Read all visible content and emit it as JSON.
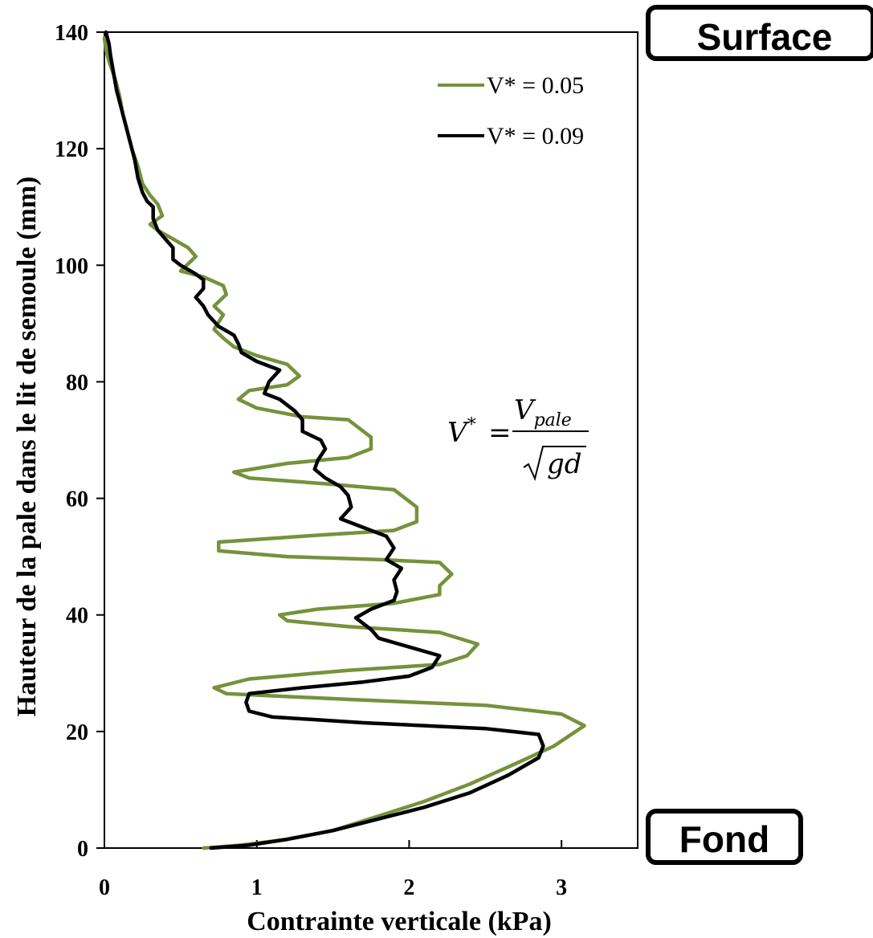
{
  "chart_data": {
    "type": "line",
    "xlabel": "Contrainte verticale (kPa)",
    "ylabel": "Hauteur de la pale dans le lit de semoule (mm)",
    "xlim": [
      0,
      3.5
    ],
    "ylim": [
      0,
      140
    ],
    "x_ticks": [
      {
        "value": 0,
        "label": "0"
      },
      {
        "value": 1,
        "label": "1"
      },
      {
        "value": 2,
        "label": "2"
      },
      {
        "value": 3,
        "label": "3"
      }
    ],
    "y_ticks": [
      {
        "value": 0,
        "label": "0"
      },
      {
        "value": 20,
        "label": "20"
      },
      {
        "value": 40,
        "label": "40"
      },
      {
        "value": 60,
        "label": "60"
      },
      {
        "value": 80,
        "label": "80"
      },
      {
        "value": 100,
        "label": "100"
      },
      {
        "value": 120,
        "label": "120"
      },
      {
        "value": 140,
        "label": "140"
      }
    ],
    "grid": false,
    "legend_position": "top-right",
    "series": [
      {
        "name": "V* = 0.05",
        "color": "#76923c",
        "points": [
          [
            0.65,
            0
          ],
          [
            0.9,
            0.5
          ],
          [
            1.2,
            1.5
          ],
          [
            1.5,
            3
          ],
          [
            1.8,
            5.5
          ],
          [
            2.1,
            8
          ],
          [
            2.4,
            11
          ],
          [
            2.7,
            14.5
          ],
          [
            2.95,
            17.5
          ],
          [
            3.15,
            21
          ],
          [
            3.0,
            23
          ],
          [
            2.5,
            24.5
          ],
          [
            1.6,
            25.5
          ],
          [
            0.8,
            26.5
          ],
          [
            0.72,
            27.5
          ],
          [
            0.95,
            29
          ],
          [
            1.6,
            30.5
          ],
          [
            2.2,
            31.5
          ],
          [
            2.38,
            33
          ],
          [
            2.45,
            35
          ],
          [
            2.2,
            37
          ],
          [
            1.6,
            38
          ],
          [
            1.2,
            39
          ],
          [
            1.15,
            40
          ],
          [
            1.4,
            41
          ],
          [
            1.9,
            42
          ],
          [
            2.2,
            43.5
          ],
          [
            2.2,
            45
          ],
          [
            2.28,
            47
          ],
          [
            2.2,
            49
          ],
          [
            1.8,
            49.5
          ],
          [
            1.2,
            50
          ],
          [
            0.75,
            51
          ],
          [
            0.75,
            52.5
          ],
          [
            1.3,
            53.5
          ],
          [
            1.9,
            54.5
          ],
          [
            2.05,
            56
          ],
          [
            2.05,
            58.5
          ],
          [
            1.9,
            61.5
          ],
          [
            1.45,
            62.5
          ],
          [
            0.95,
            63.5
          ],
          [
            0.85,
            64.5
          ],
          [
            1.2,
            66
          ],
          [
            1.6,
            67
          ],
          [
            1.75,
            68.5
          ],
          [
            1.75,
            70.5
          ],
          [
            1.6,
            73.5
          ],
          [
            1.3,
            74
          ],
          [
            1.0,
            75.5
          ],
          [
            0.88,
            77
          ],
          [
            0.95,
            78.5
          ],
          [
            1.2,
            79.5
          ],
          [
            1.28,
            81
          ],
          [
            1.2,
            83
          ],
          [
            1.0,
            84.5
          ],
          [
            0.85,
            86
          ],
          [
            0.78,
            87.5
          ],
          [
            0.72,
            89
          ],
          [
            0.78,
            91.5
          ],
          [
            0.72,
            93
          ],
          [
            0.8,
            95
          ],
          [
            0.78,
            96.5
          ],
          [
            0.65,
            98
          ],
          [
            0.5,
            99
          ],
          [
            0.6,
            101.5
          ],
          [
            0.55,
            103
          ],
          [
            0.45,
            104.5
          ],
          [
            0.35,
            106
          ],
          [
            0.3,
            107
          ],
          [
            0.38,
            108.5
          ],
          [
            0.35,
            110.5
          ],
          [
            0.3,
            112
          ],
          [
            0.25,
            114
          ],
          [
            0.22,
            117
          ],
          [
            0.18,
            120
          ],
          [
            0.15,
            123
          ],
          [
            0.12,
            126
          ],
          [
            0.1,
            129
          ],
          [
            0.07,
            132
          ],
          [
            0.03,
            135
          ],
          [
            0.01,
            137
          ],
          [
            0.0,
            139
          ]
        ]
      },
      {
        "name": "V* = 0.09",
        "color": "#000000",
        "points": [
          [
            0.7,
            0
          ],
          [
            0.95,
            0.5
          ],
          [
            1.2,
            1.5
          ],
          [
            1.5,
            3
          ],
          [
            1.8,
            5
          ],
          [
            2.1,
            7
          ],
          [
            2.4,
            9.5
          ],
          [
            2.65,
            12.5
          ],
          [
            2.85,
            15.5
          ],
          [
            2.88,
            17.5
          ],
          [
            2.85,
            19.5
          ],
          [
            2.5,
            20.5
          ],
          [
            1.7,
            21.5
          ],
          [
            1.1,
            22.5
          ],
          [
            0.95,
            23.5
          ],
          [
            0.93,
            25
          ],
          [
            0.95,
            26.5
          ],
          [
            1.3,
            27.5
          ],
          [
            1.7,
            28.5
          ],
          [
            2.0,
            29.5
          ],
          [
            2.15,
            31
          ],
          [
            2.2,
            33
          ],
          [
            2.0,
            34.5
          ],
          [
            1.8,
            36
          ],
          [
            1.75,
            37.5
          ],
          [
            1.65,
            39.5
          ],
          [
            1.75,
            41
          ],
          [
            1.9,
            42.5
          ],
          [
            1.92,
            44
          ],
          [
            1.9,
            46
          ],
          [
            1.95,
            48
          ],
          [
            1.85,
            49.5
          ],
          [
            1.9,
            51.5
          ],
          [
            1.85,
            53.5
          ],
          [
            1.7,
            55
          ],
          [
            1.55,
            56.5
          ],
          [
            1.62,
            58.5
          ],
          [
            1.6,
            60.5
          ],
          [
            1.55,
            62
          ],
          [
            1.45,
            63.5
          ],
          [
            1.38,
            65
          ],
          [
            1.4,
            66.5
          ],
          [
            1.45,
            68.5
          ],
          [
            1.42,
            70
          ],
          [
            1.3,
            71.5
          ],
          [
            1.3,
            73.5
          ],
          [
            1.25,
            75
          ],
          [
            1.15,
            77
          ],
          [
            1.05,
            78
          ],
          [
            1.08,
            80
          ],
          [
            1.15,
            82
          ],
          [
            1.0,
            83.5
          ],
          [
            0.9,
            85
          ],
          [
            0.88,
            86.5
          ],
          [
            0.85,
            88
          ],
          [
            0.75,
            89.5
          ],
          [
            0.68,
            91.5
          ],
          [
            0.65,
            93
          ],
          [
            0.6,
            94.5
          ],
          [
            0.65,
            96
          ],
          [
            0.65,
            97.5
          ],
          [
            0.6,
            98.5
          ],
          [
            0.5,
            100
          ],
          [
            0.45,
            101
          ],
          [
            0.45,
            103
          ],
          [
            0.4,
            104.5
          ],
          [
            0.35,
            106
          ],
          [
            0.32,
            108
          ],
          [
            0.32,
            110
          ],
          [
            0.28,
            111
          ],
          [
            0.25,
            112.5
          ],
          [
            0.22,
            115
          ],
          [
            0.2,
            118
          ],
          [
            0.17,
            121
          ],
          [
            0.14,
            124
          ],
          [
            0.11,
            127
          ],
          [
            0.08,
            130
          ],
          [
            0.06,
            133
          ],
          [
            0.04,
            136
          ],
          [
            0.03,
            138
          ],
          [
            0.01,
            140
          ]
        ]
      }
    ]
  },
  "formula": {
    "lhs": "V",
    "sup": "*",
    "eq": "=",
    "numerator": "V",
    "numerator_sub": "pale",
    "denominator": "gd"
  },
  "labels": {
    "surface": "Surface",
    "fond": "Fond"
  }
}
